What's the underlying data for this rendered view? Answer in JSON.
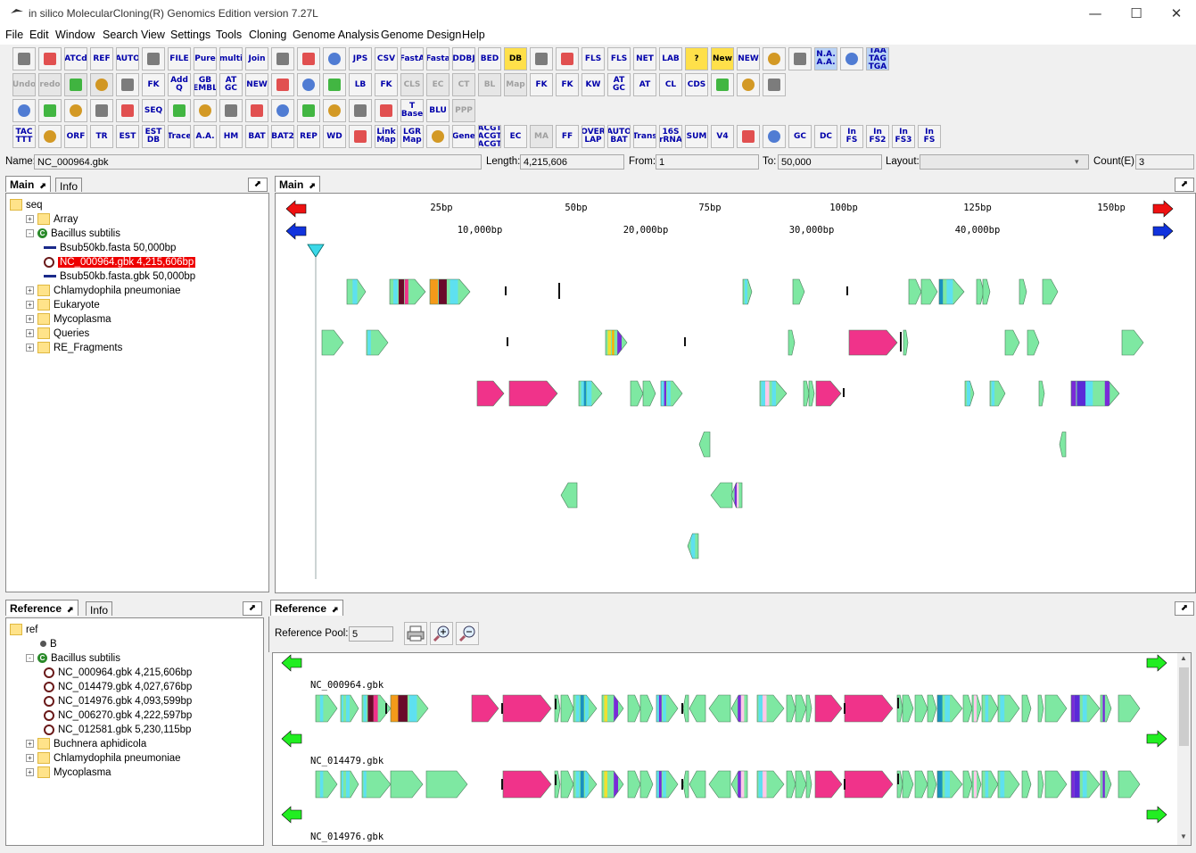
{
  "window": {
    "title": "in silico MolecularCloning(R) Genomics Edition version 7.27L",
    "minimize": "—",
    "maximize": "☐",
    "close": "✕"
  },
  "menu": [
    "File",
    "Edit",
    "Window",
    "Search",
    "View",
    "Settings",
    "Tools",
    "Cloning",
    "Genome Analysis",
    "Genome Design",
    "Help"
  ],
  "toolbar": {
    "row1": [
      "",
      "",
      "ATCd",
      "REF",
      "AUTO",
      "",
      "FILE",
      "Pure",
      "multi",
      "Join",
      "",
      "",
      "",
      "JPS",
      "CSV",
      "FastA",
      "Fasta",
      "DDBJ",
      "BED",
      "DB",
      "",
      "",
      "FLS",
      "FLS",
      "NET",
      "LAB",
      "?",
      "New",
      "NEW",
      "",
      "",
      "N.A. A.A.",
      "",
      "TAA TAG TGA"
    ],
    "row2": [
      "Undo",
      "redo",
      "",
      "",
      "",
      "FK",
      "Add Q",
      "GB EMBL",
      "AT GC",
      "NEW",
      "",
      "",
      "",
      "LB",
      "FK",
      "CLS",
      "EC",
      "CT",
      "BL",
      "Map",
      "FK",
      "FK",
      "KW",
      "AT GC",
      "AT",
      "CL",
      "CDS",
      "",
      "",
      ""
    ],
    "row3": [
      "",
      "",
      "",
      "",
      "",
      "SEQ",
      "",
      "",
      "",
      "",
      "",
      "",
      "",
      "",
      "",
      "T Base",
      "BLU",
      "PPP"
    ],
    "row4": [
      "TAC TTT",
      "",
      "ORF",
      "TR",
      "EST",
      "EST DB",
      "Trace",
      "A.A.",
      "HM",
      "BAT",
      "BAT2",
      "REP",
      "WD",
      "",
      "Link Map",
      "LGR Map",
      "",
      "Gene",
      "ACGT ACGT ACGT",
      "EC",
      "MA",
      "FF",
      "OVER LAP",
      "AUTO BAT",
      "Trans",
      "16S rRNA",
      "SUM",
      "V4",
      "",
      "",
      "GC",
      "DC",
      "In FS",
      "In FS2",
      "In FS3",
      "In FS"
    ]
  },
  "namebar": {
    "name_label": "Name:",
    "name_value": "NC_000964.gbk",
    "length_label": "Length:",
    "length_value": "4,215,606",
    "from_label": "From:",
    "from_value": "1",
    "to_label": "To:",
    "to_value": "50,000",
    "layout_label": "Layout:",
    "layout_value": "",
    "count_label": "Count(E):",
    "count_value": "3"
  },
  "left_top": {
    "tab_main": "Main",
    "tab_info": "Info",
    "tree": [
      {
        "label": "seq",
        "level": 0,
        "icon": "folder"
      },
      {
        "label": "Array",
        "level": 1,
        "icon": "folder",
        "exp": "+"
      },
      {
        "label": "Bacillus subtilis",
        "level": 1,
        "icon": "c",
        "exp": "-"
      },
      {
        "label": "Bsub50kb.fasta  50,000bp",
        "level": 2,
        "icon": "line"
      },
      {
        "label": "NC_000964.gbk  4,215,606bp",
        "level": 2,
        "icon": "ring",
        "selected": true
      },
      {
        "label": "Bsub50kb.fasta.gbk  50,000bp",
        "level": 2,
        "icon": "line"
      },
      {
        "label": "Chlamydophila pneumoniae",
        "level": 1,
        "icon": "folder",
        "exp": "+"
      },
      {
        "label": "Eukaryote",
        "level": 1,
        "icon": "folder",
        "exp": "+"
      },
      {
        "label": "Mycoplasma",
        "level": 1,
        "icon": "folder",
        "exp": "+"
      },
      {
        "label": "Queries",
        "level": 1,
        "icon": "folder",
        "exp": "+"
      },
      {
        "label": "RE_Fragments",
        "level": 1,
        "icon": "folder",
        "exp": "+"
      }
    ]
  },
  "main_view": {
    "tab": "Main",
    "scale_bp": [
      "25bp",
      "50bp",
      "75bp",
      "100bp",
      "125bp",
      "150bp"
    ],
    "scale_kb": [
      "10,000bp",
      "20,000bp",
      "30,000bp",
      "40,000bp"
    ]
  },
  "left_bottom": {
    "tab_reference": "Reference",
    "tab_info": "Info",
    "tree": [
      {
        "label": "ref",
        "level": 0,
        "icon": "folder"
      },
      {
        "label": "B",
        "level": 1,
        "icon": "dot"
      },
      {
        "label": "Bacillus subtilis",
        "level": 1,
        "icon": "c",
        "exp": "-"
      },
      {
        "label": "NC_000964.gbk  4,215,606bp",
        "level": 2,
        "icon": "ring"
      },
      {
        "label": "NC_014479.gbk  4,027,676bp",
        "level": 2,
        "icon": "ring"
      },
      {
        "label": "NC_014976.gbk  4,093,599bp",
        "level": 2,
        "icon": "ring"
      },
      {
        "label": "NC_006270.gbk  4,222,597bp",
        "level": 2,
        "icon": "ring"
      },
      {
        "label": "NC_012581.gbk  5,230,115bp",
        "level": 2,
        "icon": "ring"
      },
      {
        "label": "Buchnera aphidicola",
        "level": 1,
        "icon": "folder",
        "exp": "+"
      },
      {
        "label": "Chlamydophila pneumoniae",
        "level": 1,
        "icon": "folder",
        "exp": "+"
      },
      {
        "label": "Mycoplasma",
        "level": 1,
        "icon": "folder",
        "exp": "+"
      }
    ]
  },
  "reference_view": {
    "tab": "Reference",
    "pool_label": "Reference Pool:",
    "pool_value": "5",
    "tracks": [
      "NC_000964.gbk",
      "NC_014479.gbk",
      "NC_014976.gbk"
    ]
  },
  "colors": {
    "gene_green": "#7ee8a2",
    "gene_pink": "#f0338a",
    "gene_cyan": "#5ee0f0",
    "gene_orange": "#f49a1a",
    "gene_maroon": "#6a0a2a",
    "gene_purple": "#7a2ad8",
    "arrow_red": "#ee1111",
    "arrow_blue": "#1133dd",
    "arrow_green": "#22ee22",
    "selection_red": "#ee0000"
  }
}
